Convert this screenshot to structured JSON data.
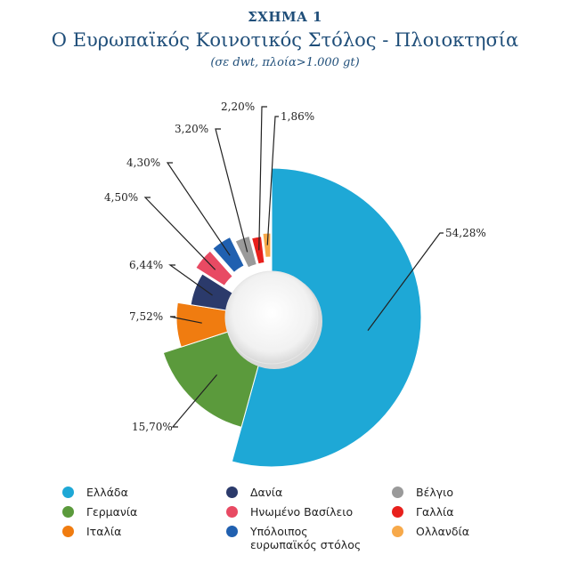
{
  "figure": {
    "label": "ΣΧΗΜΑ 1",
    "title": "Ο Ευρωπαϊκός Κοινοτικός Στόλος - Πλοιοκτησία",
    "subtitle": "(σε dwt, πλοία>1.000 gt)"
  },
  "chart_data": {
    "type": "pie",
    "title": "Ο Ευρωπαϊκός Κοινοτικός Στόλος - Πλοιοκτησία",
    "subtitle": "(σε dwt, πλοία>1.000 gt)",
    "donut": true,
    "legend_position": "bottom",
    "slices": [
      {
        "name": "Ελλάδα",
        "value": 54.28,
        "label": "54,28%",
        "color": "#1ea8d6"
      },
      {
        "name": "Γερμανία",
        "value": 15.7,
        "label": "15,70%",
        "color": "#5b9a3c"
      },
      {
        "name": "Ιταλία",
        "value": 7.52,
        "label": "7,52%",
        "color": "#f07c10"
      },
      {
        "name": "Δανία",
        "value": 6.44,
        "label": "6,44%",
        "color": "#2b3a6b"
      },
      {
        "name": "Ηνωμένο Βασίλειο",
        "value": 4.5,
        "label": "4,50%",
        "color": "#e84a63"
      },
      {
        "name": "Υπόλοιπος ευρωπαϊκός στόλος",
        "value": 4.3,
        "label": "4,30%",
        "color": "#2060b0"
      },
      {
        "name": "Βέλγιο",
        "value": 3.2,
        "label": "3,20%",
        "color": "#9a9a9a"
      },
      {
        "name": "Γαλλία",
        "value": 2.2,
        "label": "2,20%",
        "color": "#e8201c"
      },
      {
        "name": "Ολλανδία",
        "value": 1.86,
        "label": "1,86%",
        "color": "#f7a94a"
      }
    ],
    "legend": [
      {
        "name": "Ελλάδα",
        "color": "#1ea8d6"
      },
      {
        "name": "Δανία",
        "color": "#2b3a6b"
      },
      {
        "name": "Βέλγιο",
        "color": "#9a9a9a"
      },
      {
        "name": "Γερμανία",
        "color": "#5b9a3c"
      },
      {
        "name": "Ηνωμένο Βασίλειο",
        "color": "#e84a63"
      },
      {
        "name": "Γαλλία",
        "color": "#e8201c"
      },
      {
        "name": "Ιταλία",
        "color": "#f07c10"
      },
      {
        "name": "Υπόλοιπος ευρωπαϊκός στόλος",
        "color": "#2060b0"
      },
      {
        "name": "Ολλανδία",
        "color": "#f7a94a"
      }
    ]
  }
}
